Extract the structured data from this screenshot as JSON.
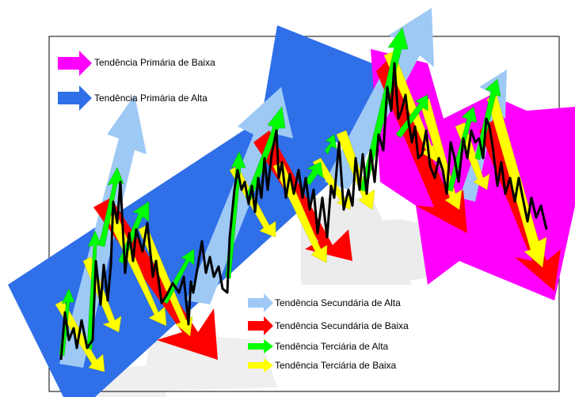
{
  "legend": {
    "primary_down": "Tendência Primária de Baixa",
    "primary_up": "Tendência Primária de Alta",
    "secondary_up": "Tendência Secundária de Alta",
    "secondary_down": "Tendência Secundária de Baixa",
    "tertiary_up": "Tendência Terciária de Alta",
    "tertiary_down": "Tendência Terciária de Baixa"
  },
  "colors": {
    "primary_up": "#2f6fe8",
    "primary_down": "#ff00ff",
    "secondary_up": "#9ec9f5",
    "secondary_down": "#ff0000",
    "tertiary_up": "#00ff00",
    "tertiary_down": "#ffff00",
    "price_line": "#000000",
    "frame": "#000000"
  }
}
